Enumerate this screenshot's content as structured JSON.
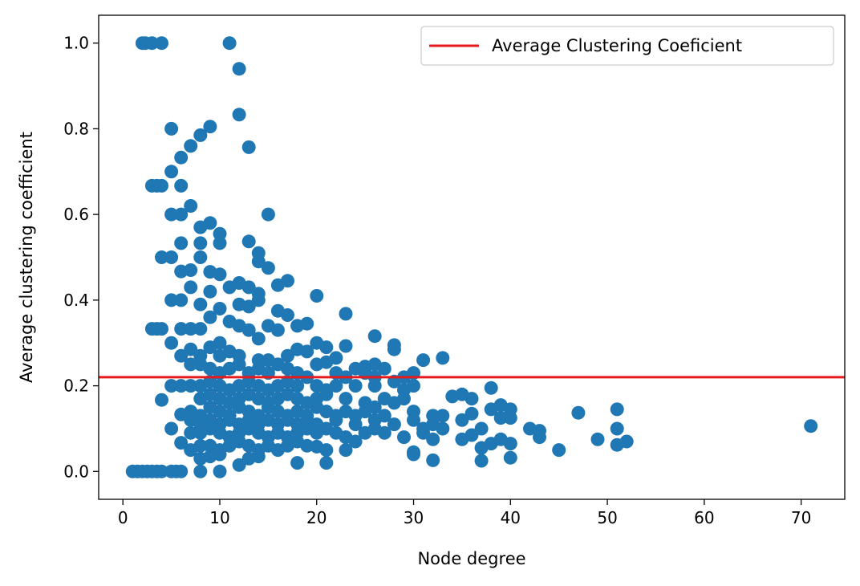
{
  "chart_data": {
    "type": "scatter",
    "title": "",
    "xlabel": "Node degree",
    "ylabel": "Average clustering coefficient",
    "xlim": [
      -2.5,
      74.5
    ],
    "ylim": [
      -0.065,
      1.065
    ],
    "xticks": [
      0,
      10,
      20,
      30,
      40,
      50,
      60,
      70
    ],
    "yticks": [
      0.0,
      0.2,
      0.4,
      0.6,
      0.8,
      1.0
    ],
    "xtick_labels": [
      "0",
      "10",
      "20",
      "30",
      "40",
      "50",
      "60",
      "70"
    ],
    "ytick_labels": [
      "0.0",
      "0.2",
      "0.4",
      "0.6",
      "0.8",
      "1.0"
    ],
    "grid": false,
    "legend": {
      "placement": "top-right",
      "entries": [
        {
          "label": "Average Clustering Coeficient",
          "color": "#e41a1c",
          "kind": "line"
        }
      ]
    },
    "hline": {
      "y": 0.22,
      "color": "#e41a1c"
    },
    "point_color": "#1f77b4",
    "points": [
      [
        1,
        0
      ],
      [
        2,
        0
      ],
      [
        3,
        0
      ],
      [
        4,
        0
      ],
      [
        5,
        0
      ],
      [
        6,
        0
      ],
      [
        8,
        0
      ],
      [
        10,
        0
      ],
      [
        1.5,
        0
      ],
      [
        2.5,
        0
      ],
      [
        3.5,
        0
      ],
      [
        5.5,
        0
      ],
      [
        2,
        1
      ],
      [
        2.3,
        1
      ],
      [
        3,
        1
      ],
      [
        4,
        1
      ],
      [
        11,
        1
      ],
      [
        12,
        0.94
      ],
      [
        12,
        0.833
      ],
      [
        13,
        0.757
      ],
      [
        5,
        0.8
      ],
      [
        9,
        0.805
      ],
      [
        8,
        0.785
      ],
      [
        7,
        0.76
      ],
      [
        6,
        0.733
      ],
      [
        5,
        0.7
      ],
      [
        3,
        0.667
      ],
      [
        3.5,
        0.667
      ],
      [
        4,
        0.667
      ],
      [
        6,
        0.667
      ],
      [
        15,
        0.6
      ],
      [
        5,
        0.6
      ],
      [
        6,
        0.6
      ],
      [
        7,
        0.62
      ],
      [
        9,
        0.58
      ],
      [
        10,
        0.555
      ],
      [
        8,
        0.57
      ],
      [
        6,
        0.533
      ],
      [
        8,
        0.533
      ],
      [
        10,
        0.533
      ],
      [
        13,
        0.537
      ],
      [
        14,
        0.51
      ],
      [
        14,
        0.49
      ],
      [
        15,
        0.475
      ],
      [
        4,
        0.5
      ],
      [
        5,
        0.5
      ],
      [
        8,
        0.5
      ],
      [
        7,
        0.47
      ],
      [
        9,
        0.466
      ],
      [
        10,
        0.46
      ],
      [
        11,
        0.43
      ],
      [
        12,
        0.44
      ],
      [
        13,
        0.43
      ],
      [
        16,
        0.435
      ],
      [
        17,
        0.445
      ],
      [
        14,
        0.415
      ],
      [
        9,
        0.42
      ],
      [
        7,
        0.43
      ],
      [
        6,
        0.467
      ],
      [
        5,
        0.4
      ],
      [
        6,
        0.4
      ],
      [
        8,
        0.39
      ],
      [
        10,
        0.38
      ],
      [
        12,
        0.39
      ],
      [
        13,
        0.385
      ],
      [
        14,
        0.4
      ],
      [
        16,
        0.375
      ],
      [
        17,
        0.365
      ],
      [
        20,
        0.41
      ],
      [
        23,
        0.368
      ],
      [
        9,
        0.36
      ],
      [
        11,
        0.35
      ],
      [
        12,
        0.34
      ],
      [
        13,
        0.33
      ],
      [
        15,
        0.34
      ],
      [
        16,
        0.33
      ],
      [
        18,
        0.34
      ],
      [
        19,
        0.345
      ],
      [
        14,
        0.31
      ],
      [
        10,
        0.3
      ],
      [
        3,
        0.333
      ],
      [
        3.5,
        0.333
      ],
      [
        4,
        0.333
      ],
      [
        6,
        0.333
      ],
      [
        7,
        0.333
      ],
      [
        8,
        0.333
      ],
      [
        5,
        0.3
      ],
      [
        26,
        0.316
      ],
      [
        20,
        0.3
      ],
      [
        21,
        0.29
      ],
      [
        23,
        0.293
      ],
      [
        28,
        0.295
      ],
      [
        28,
        0.285
      ],
      [
        18,
        0.285
      ],
      [
        19,
        0.28
      ],
      [
        17,
        0.27
      ],
      [
        15,
        0.26
      ],
      [
        16,
        0.25
      ],
      [
        14,
        0.26
      ],
      [
        12,
        0.27
      ],
      [
        11,
        0.28
      ],
      [
        9,
        0.29
      ],
      [
        10,
        0.27
      ],
      [
        8,
        0.27
      ],
      [
        6,
        0.27
      ],
      [
        7,
        0.285
      ],
      [
        22,
        0.265
      ],
      [
        21,
        0.255
      ],
      [
        20,
        0.25
      ],
      [
        24,
        0.24
      ],
      [
        25,
        0.245
      ],
      [
        26,
        0.25
      ],
      [
        27,
        0.24
      ],
      [
        31,
        0.26
      ],
      [
        33,
        0.265
      ],
      [
        30,
        0.23
      ],
      [
        29,
        0.22
      ],
      [
        7,
        0.25
      ],
      [
        8,
        0.25
      ],
      [
        9,
        0.24
      ],
      [
        10,
        0.23
      ],
      [
        11,
        0.24
      ],
      [
        12,
        0.25
      ],
      [
        13,
        0.23
      ],
      [
        14,
        0.24
      ],
      [
        15,
        0.23
      ],
      [
        17,
        0.24
      ],
      [
        18,
        0.23
      ],
      [
        19,
        0.22
      ],
      [
        22,
        0.23
      ],
      [
        23,
        0.22
      ],
      [
        25,
        0.23
      ],
      [
        26,
        0.22
      ],
      [
        28,
        0.21
      ],
      [
        5,
        0.2
      ],
      [
        6,
        0.2
      ],
      [
        7,
        0.2
      ],
      [
        8,
        0.2
      ],
      [
        9,
        0.21
      ],
      [
        10,
        0.2
      ],
      [
        11,
        0.19
      ],
      [
        12,
        0.2
      ],
      [
        13,
        0.21
      ],
      [
        14,
        0.2
      ],
      [
        15,
        0.19
      ],
      [
        16,
        0.2
      ],
      [
        17,
        0.21
      ],
      [
        18,
        0.2
      ],
      [
        20,
        0.2
      ],
      [
        21,
        0.19
      ],
      [
        22,
        0.2
      ],
      [
        24,
        0.2
      ],
      [
        26,
        0.2
      ],
      [
        29,
        0.19
      ],
      [
        30,
        0.2
      ],
      [
        38,
        0.195
      ],
      [
        4,
        0.167
      ],
      [
        8,
        0.17
      ],
      [
        9,
        0.18
      ],
      [
        10,
        0.17
      ],
      [
        11,
        0.16
      ],
      [
        12,
        0.17
      ],
      [
        13,
        0.18
      ],
      [
        14,
        0.17
      ],
      [
        15,
        0.16
      ],
      [
        16,
        0.17
      ],
      [
        17,
        0.18
      ],
      [
        18,
        0.17
      ],
      [
        19,
        0.16
      ],
      [
        20,
        0.17
      ],
      [
        21,
        0.18
      ],
      [
        23,
        0.17
      ],
      [
        25,
        0.16
      ],
      [
        27,
        0.17
      ],
      [
        28,
        0.16
      ],
      [
        29,
        0.17
      ],
      [
        34,
        0.175
      ],
      [
        35,
        0.18
      ],
      [
        36,
        0.17
      ],
      [
        7,
        0.14
      ],
      [
        8,
        0.13
      ],
      [
        9,
        0.15
      ],
      [
        10,
        0.14
      ],
      [
        11,
        0.13
      ],
      [
        12,
        0.15
      ],
      [
        13,
        0.14
      ],
      [
        14,
        0.13
      ],
      [
        15,
        0.15
      ],
      [
        16,
        0.14
      ],
      [
        17,
        0.13
      ],
      [
        18,
        0.14
      ],
      [
        19,
        0.13
      ],
      [
        20,
        0.15
      ],
      [
        21,
        0.14
      ],
      [
        22,
        0.13
      ],
      [
        23,
        0.14
      ],
      [
        24,
        0.13
      ],
      [
        25,
        0.14
      ],
      [
        26,
        0.15
      ],
      [
        27,
        0.13
      ],
      [
        30,
        0.14
      ],
      [
        32,
        0.13
      ],
      [
        33,
        0.13
      ],
      [
        38,
        0.145
      ],
      [
        39,
        0.155
      ],
      [
        40,
        0.145
      ],
      [
        36,
        0.135
      ],
      [
        47,
        0.137
      ],
      [
        51,
        0.145
      ],
      [
        6,
        0.133
      ],
      [
        7,
        0.12
      ],
      [
        8,
        0.11
      ],
      [
        9,
        0.12
      ],
      [
        10,
        0.11
      ],
      [
        11,
        0.12
      ],
      [
        12,
        0.11
      ],
      [
        13,
        0.12
      ],
      [
        14,
        0.11
      ],
      [
        15,
        0.12
      ],
      [
        16,
        0.11
      ],
      [
        17,
        0.12
      ],
      [
        18,
        0.11
      ],
      [
        19,
        0.12
      ],
      [
        20,
        0.11
      ],
      [
        22,
        0.12
      ],
      [
        24,
        0.11
      ],
      [
        26,
        0.12
      ],
      [
        28,
        0.11
      ],
      [
        30,
        0.12
      ],
      [
        31,
        0.1
      ],
      [
        32,
        0.11
      ],
      [
        33,
        0.1
      ],
      [
        35,
        0.12
      ],
      [
        37,
        0.1
      ],
      [
        39,
        0.125
      ],
      [
        40,
        0.125
      ],
      [
        42,
        0.1
      ],
      [
        43,
        0.095
      ],
      [
        51,
        0.1
      ],
      [
        71,
        0.106
      ],
      [
        5,
        0.1
      ],
      [
        7,
        0.09
      ],
      [
        8,
        0.09
      ],
      [
        9,
        0.1
      ],
      [
        10,
        0.09
      ],
      [
        11,
        0.08
      ],
      [
        12,
        0.09
      ],
      [
        13,
        0.1
      ],
      [
        14,
        0.09
      ],
      [
        15,
        0.08
      ],
      [
        16,
        0.09
      ],
      [
        17,
        0.08
      ],
      [
        18,
        0.09
      ],
      [
        19,
        0.1
      ],
      [
        20,
        0.09
      ],
      [
        21,
        0.1
      ],
      [
        22,
        0.09
      ],
      [
        23,
        0.08
      ],
      [
        25,
        0.09
      ],
      [
        26,
        0.1
      ],
      [
        27,
        0.09
      ],
      [
        29,
        0.08
      ],
      [
        31,
        0.09
      ],
      [
        32,
        0.075
      ],
      [
        35,
        0.075
      ],
      [
        36,
        0.085
      ],
      [
        38,
        0.065
      ],
      [
        39,
        0.075
      ],
      [
        40,
        0.065
      ],
      [
        43,
        0.08
      ],
      [
        49,
        0.075
      ],
      [
        52,
        0.07
      ],
      [
        51,
        0.062
      ],
      [
        6,
        0.067
      ],
      [
        7,
        0.05
      ],
      [
        8,
        0.06
      ],
      [
        9,
        0.06
      ],
      [
        10,
        0.05
      ],
      [
        11,
        0.06
      ],
      [
        12,
        0.07
      ],
      [
        13,
        0.06
      ],
      [
        14,
        0.05
      ],
      [
        15,
        0.06
      ],
      [
        16,
        0.05
      ],
      [
        17,
        0.06
      ],
      [
        18,
        0.07
      ],
      [
        19,
        0.06
      ],
      [
        20,
        0.058
      ],
      [
        21,
        0.05
      ],
      [
        23,
        0.05
      ],
      [
        24,
        0.07
      ],
      [
        30,
        0.045
      ],
      [
        30,
        0.04
      ],
      [
        37,
        0.055
      ],
      [
        45,
        0.05
      ],
      [
        8,
        0.03
      ],
      [
        9,
        0.035
      ],
      [
        10,
        0.04
      ],
      [
        12,
        0.015
      ],
      [
        13,
        0.03
      ],
      [
        14,
        0.035
      ],
      [
        18,
        0.02
      ],
      [
        21,
        0.02
      ],
      [
        32,
        0.026
      ],
      [
        37,
        0.025
      ],
      [
        40,
        0.032
      ]
    ]
  }
}
